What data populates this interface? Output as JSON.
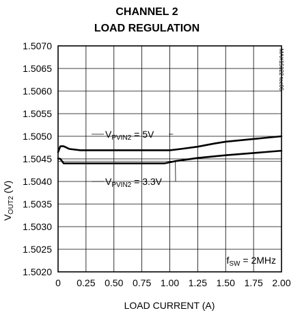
{
  "chart_data": {
    "type": "line",
    "title_line1": "CHANNEL 2",
    "title_line2": "LOAD REGULATION",
    "xlabel": "LOAD CURRENT (A)",
    "ylabel": {
      "main": "V",
      "sub": "OUT2",
      "unit": " (V)"
    },
    "xlim": [
      0,
      2.0
    ],
    "ylim": [
      1.502,
      1.507
    ],
    "x_ticks": [
      "0",
      "0.25",
      "0.50",
      "0.75",
      "1.00",
      "1.25",
      "1.50",
      "1.75",
      "2.00"
    ],
    "y_ticks": [
      "1.5020",
      "1.5025",
      "1.5030",
      "1.5035",
      "1.5040",
      "1.5045",
      "1.5050",
      "1.5055",
      "1.5060",
      "1.5065",
      "1.5070"
    ],
    "grid": true,
    "series": [
      {
        "name": "V_PVIN2 = 5V",
        "x": [
          0,
          0.02,
          0.05,
          0.1,
          0.2,
          0.3,
          0.5,
          0.75,
          1.0,
          1.1,
          1.25,
          1.4,
          1.5,
          1.75,
          2.0
        ],
        "y": [
          1.50465,
          1.50478,
          1.50478,
          1.50472,
          1.50469,
          1.50469,
          1.50469,
          1.50469,
          1.50469,
          1.50472,
          1.50477,
          1.50484,
          1.50488,
          1.50494,
          1.505
        ]
      },
      {
        "name": "V_PVIN2 = 3.3V",
        "x": [
          0,
          0.02,
          0.05,
          0.1,
          0.25,
          0.5,
          0.75,
          0.95,
          1.05,
          1.25,
          1.5,
          1.75,
          2.0
        ],
        "y": [
          1.50451,
          1.5045,
          1.5044,
          1.5044,
          1.5044,
          1.5044,
          1.5044,
          1.5044,
          1.50445,
          1.50452,
          1.50458,
          1.50463,
          1.50468
        ]
      }
    ],
    "annotations": [
      {
        "base": "V",
        "sub": "PVIN2",
        "rest": " = 5V"
      },
      {
        "base": "V",
        "sub": "PVIN2",
        "rest": " = 3.3V"
      },
      {
        "base": "f",
        "sub": "SW",
        "rest": " = 2MHz"
      }
    ],
    "side_label": "MAX15022 toc06"
  }
}
